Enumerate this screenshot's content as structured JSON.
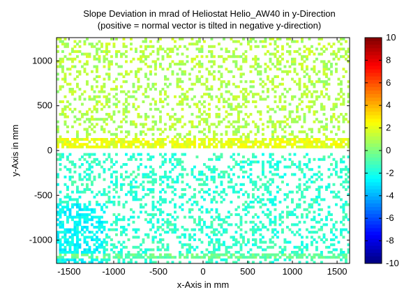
{
  "chart_data": {
    "type": "heatmap",
    "title": [
      "Slope Deviation in mrad of Heliostat Helio_AW40 in y-Direction",
      "(positive = normal vector is tilted in negative y-direction)"
    ],
    "xlabel": "x-Axis in mm",
    "ylabel": "y-Axis in mm",
    "xlim": [
      -1640,
      1640
    ],
    "ylim": [
      -1260,
      1260
    ],
    "x_ticks": [
      -1500,
      -1000,
      -500,
      0,
      500,
      1000,
      1500
    ],
    "y_ticks": [
      -1000,
      -500,
      0,
      500,
      1000
    ],
    "colorbar": {
      "min": -10,
      "max": 10,
      "ticks": [
        10,
        8,
        6,
        4,
        2,
        0,
        -2,
        -4,
        -6,
        -8,
        -10
      ],
      "colormap": "jet"
    },
    "sample_grid": {
      "nx": 120,
      "ny": 90,
      "seed": 40
    },
    "zones": [
      {
        "label": "upper half",
        "y_range": [
          40,
          1260
        ],
        "typical_value": 1.0
      },
      {
        "label": "upper edge near y=0",
        "y_range": [
          40,
          130
        ],
        "typical_value": 2.0
      },
      {
        "label": "lower half",
        "y_range": [
          -1260,
          -40
        ],
        "typical_value": -1.5
      },
      {
        "label": "lower-left corner",
        "x_range": [
          -1640,
          -1100
        ],
        "y_range": [
          -1260,
          -600
        ],
        "typical_value": -2.5
      },
      {
        "label": "bottom edge",
        "y_range": [
          -1200,
          -1140
        ],
        "typical_value": -0.5
      }
    ]
  }
}
